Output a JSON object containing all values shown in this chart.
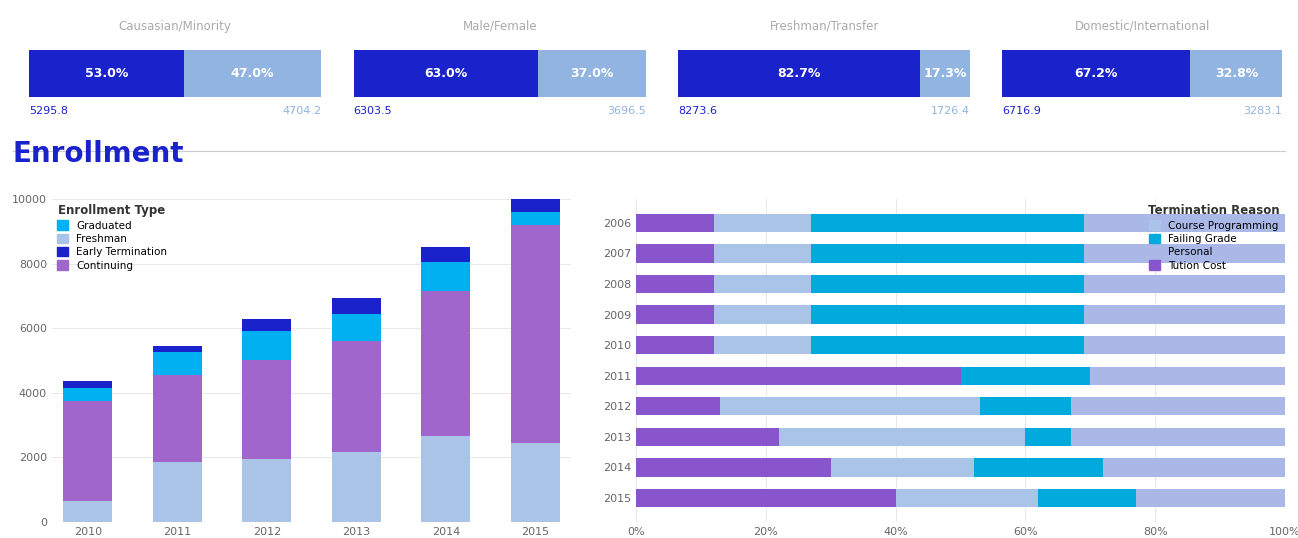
{
  "summary_bars": [
    {
      "title": "Causasian/Minority",
      "pct1": 53.0,
      "pct2": 47.0,
      "val1": "5295.8",
      "val2": "4704.2",
      "color1": "#1a22cc",
      "color2": "#91b4e0",
      "label1": "53.0%",
      "label2": "47.0%"
    },
    {
      "title": "Male/Female",
      "pct1": 63.0,
      "pct2": 37.0,
      "val1": "6303.5",
      "val2": "3696.5",
      "color1": "#1a22cc",
      "color2": "#91b4e0",
      "label1": "63.0%",
      "label2": "37.0%"
    },
    {
      "title": "Freshman/Transfer",
      "pct1": 82.7,
      "pct2": 17.3,
      "val1": "8273.6",
      "val2": "1726.4",
      "color1": "#1a22cc",
      "color2": "#91b4e0",
      "label1": "82.7%",
      "label2": "17.3%"
    },
    {
      "title": "Domestic/International",
      "pct1": 67.2,
      "pct2": 32.8,
      "val1": "6716.9",
      "val2": "3283.1",
      "color1": "#1a22cc",
      "color2": "#91b4e0",
      "label1": "67.2%",
      "label2": "32.8%"
    }
  ],
  "enrollment_title": "Enrollment",
  "enrollment_years": [
    2010,
    2011,
    2012,
    2013,
    2014,
    2015
  ],
  "enrollment_data": {
    "Freshman": [
      650,
      1850,
      1950,
      2150,
      2650,
      2450
    ],
    "Continuing": [
      3100,
      2700,
      3050,
      3450,
      4500,
      6750
    ],
    "Graduated": [
      400,
      700,
      900,
      850,
      900,
      400
    ],
    "Early Termination": [
      200,
      200,
      380,
      480,
      450,
      400
    ]
  },
  "enrollment_colors": {
    "Freshman": "#aac4e8",
    "Continuing": "#a066cc",
    "Graduated": "#00b0f0",
    "Early Termination": "#1a22cc"
  },
  "enrollment_ylim": [
    0,
    10000
  ],
  "termination_years": [
    2015,
    2014,
    2013,
    2012,
    2011,
    2010,
    2009,
    2008,
    2007,
    2006
  ],
  "termination_data": {
    "Tution Cost": [
      0.4,
      0.3,
      0.22,
      0.13,
      0.5,
      0.12,
      0.12,
      0.12,
      0.12,
      0.12
    ],
    "Course Programming": [
      0.22,
      0.22,
      0.38,
      0.4,
      0.0,
      0.15,
      0.15,
      0.15,
      0.15,
      0.15
    ],
    "Failing Grade": [
      0.15,
      0.2,
      0.07,
      0.14,
      0.2,
      0.42,
      0.42,
      0.42,
      0.42,
      0.42
    ],
    "Personal": [
      0.23,
      0.28,
      0.33,
      0.33,
      0.3,
      0.31,
      0.31,
      0.31,
      0.31,
      0.31
    ]
  },
  "termination_colors": {
    "Tution Cost": "#8855cc",
    "Course Programming": "#aac4e8",
    "Failing Grade": "#00aadd",
    "Personal": "#aab8e8"
  },
  "bg_color": "#ffffff",
  "title_color": "#1a22cc",
  "text_gray": "#aaaaaa",
  "val_dark": "#1a22cc",
  "val_light": "#91b4e0"
}
